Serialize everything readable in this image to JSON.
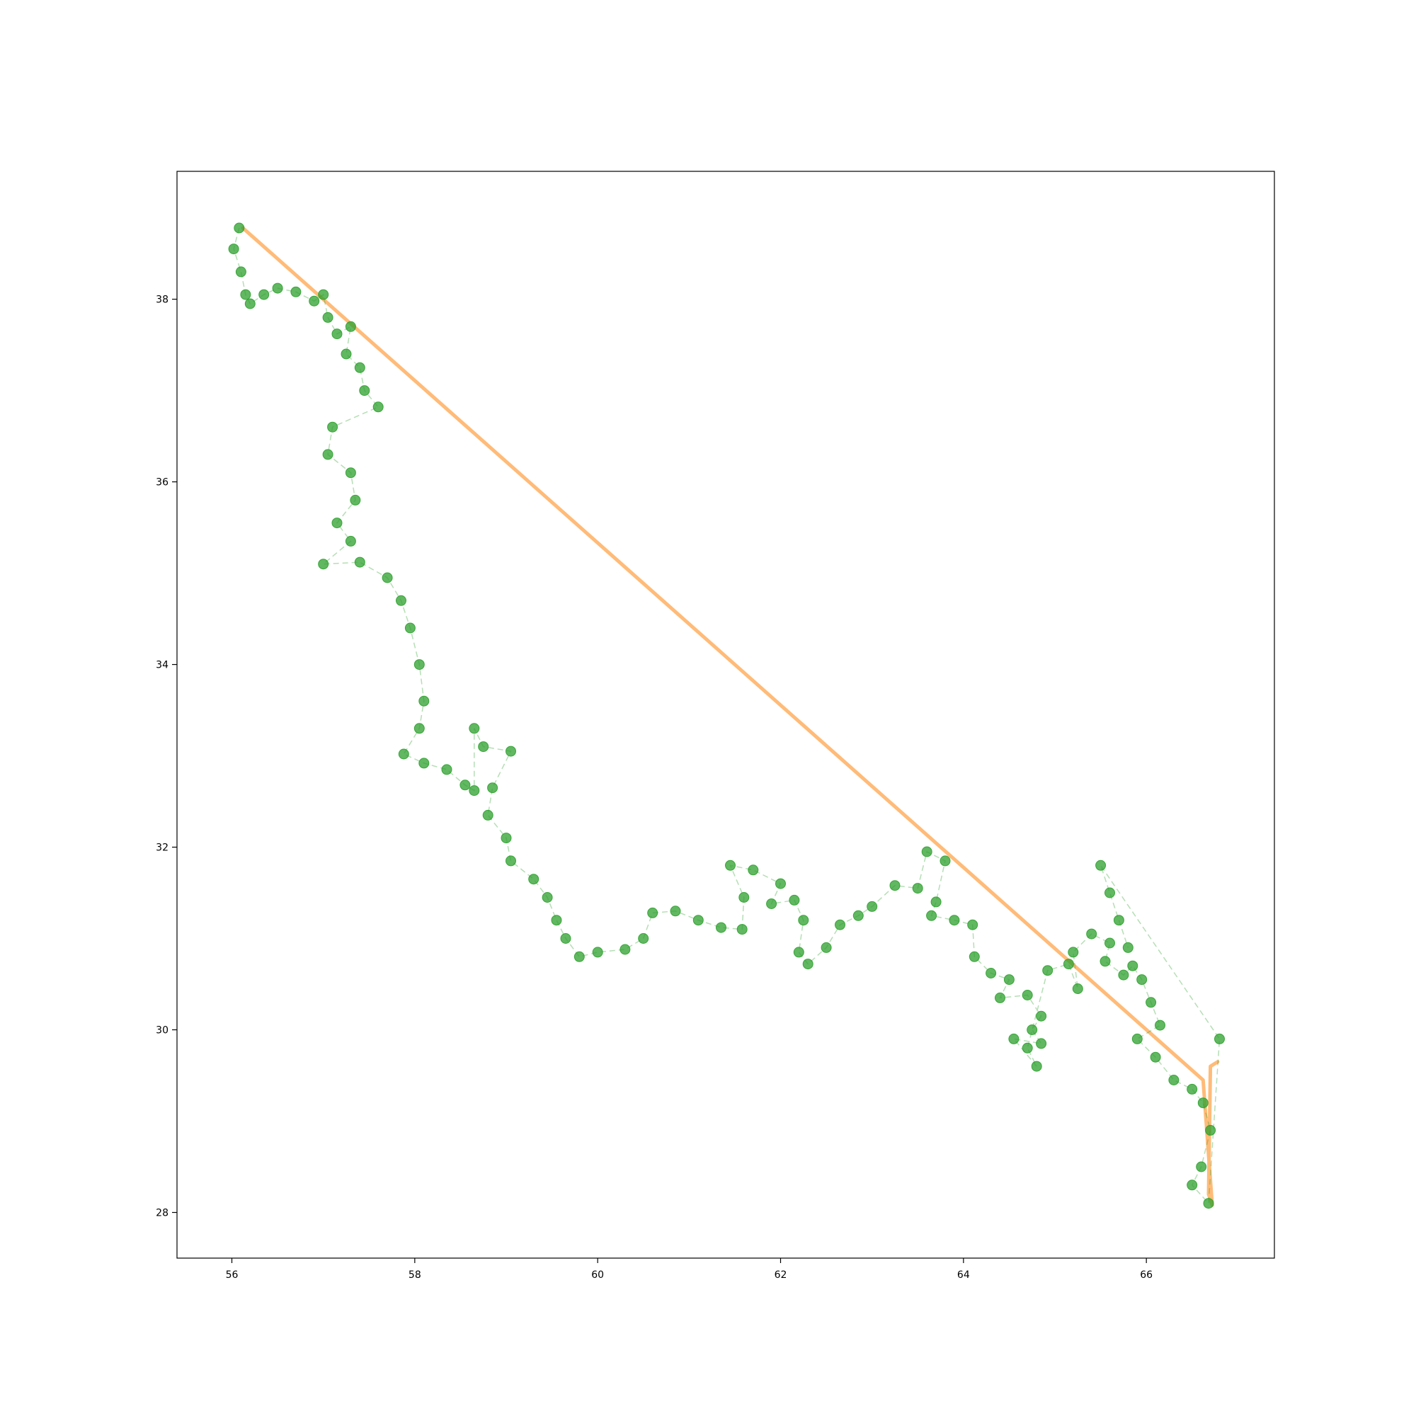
{
  "chart_data": {
    "type": "scatter",
    "title": "",
    "xlabel": "",
    "ylabel": "",
    "xlim": [
      55.4,
      67.4
    ],
    "ylim": [
      27.5,
      39.4
    ],
    "x_ticks": [
      56,
      58,
      60,
      62,
      64,
      66
    ],
    "x_tick_labels": [
      "56",
      "58",
      "60",
      "62",
      "64",
      "66"
    ],
    "y_ticks": [
      28,
      30,
      32,
      34,
      36,
      38
    ],
    "y_tick_labels": [
      "28",
      "30",
      "32",
      "34",
      "36",
      "38"
    ],
    "grid": false,
    "legend": "none",
    "series": [
      {
        "style": "line",
        "color": "#ffbb78",
        "points": [
          [
            56.12,
            38.78
          ],
          [
            66.62,
            29.45
          ],
          [
            66.72,
            28.08
          ],
          [
            66.68,
            28.2
          ],
          [
            66.7,
            29.6
          ],
          [
            66.78,
            29.65
          ]
        ]
      },
      {
        "style": "markers-dashed-line",
        "color": "#2ca02c",
        "points": [
          [
            56.08,
            38.78
          ],
          [
            56.02,
            38.55
          ],
          [
            56.1,
            38.3
          ],
          [
            56.15,
            38.05
          ],
          [
            56.2,
            37.95
          ],
          [
            56.35,
            38.05
          ],
          [
            56.5,
            38.12
          ],
          [
            56.7,
            38.08
          ],
          [
            56.9,
            37.98
          ],
          [
            57.0,
            38.05
          ],
          [
            57.05,
            37.8
          ],
          [
            57.15,
            37.62
          ],
          [
            57.3,
            37.7
          ],
          [
            57.25,
            37.4
          ],
          [
            57.4,
            37.25
          ],
          [
            57.45,
            37.0
          ],
          [
            57.6,
            36.82
          ],
          [
            57.1,
            36.6
          ],
          [
            57.05,
            36.3
          ],
          [
            57.3,
            36.1
          ],
          [
            57.35,
            35.8
          ],
          [
            57.15,
            35.55
          ],
          [
            57.3,
            35.35
          ],
          [
            57.0,
            35.1
          ],
          [
            57.4,
            35.12
          ],
          [
            57.7,
            34.95
          ],
          [
            57.85,
            34.7
          ],
          [
            57.95,
            34.4
          ],
          [
            58.05,
            34.0
          ],
          [
            58.1,
            33.6
          ],
          [
            58.05,
            33.3
          ],
          [
            57.88,
            33.02
          ],
          [
            58.1,
            32.92
          ],
          [
            58.35,
            32.85
          ],
          [
            58.55,
            32.68
          ],
          [
            58.65,
            32.62
          ],
          [
            58.65,
            33.3
          ],
          [
            58.75,
            33.1
          ],
          [
            59.05,
            33.05
          ],
          [
            58.85,
            32.65
          ],
          [
            58.8,
            32.35
          ],
          [
            59.0,
            32.1
          ],
          [
            59.05,
            31.85
          ],
          [
            59.3,
            31.65
          ],
          [
            59.45,
            31.45
          ],
          [
            59.55,
            31.2
          ],
          [
            59.65,
            31.0
          ],
          [
            59.8,
            30.8
          ],
          [
            60.0,
            30.85
          ],
          [
            60.3,
            30.88
          ],
          [
            60.5,
            31.0
          ],
          [
            60.6,
            31.28
          ],
          [
            60.85,
            31.3
          ],
          [
            61.1,
            31.2
          ],
          [
            61.35,
            31.12
          ],
          [
            61.58,
            31.1
          ],
          [
            61.6,
            31.45
          ],
          [
            61.45,
            31.8
          ],
          [
            61.7,
            31.75
          ],
          [
            62.0,
            31.6
          ],
          [
            61.9,
            31.38
          ],
          [
            62.15,
            31.42
          ],
          [
            62.25,
            31.2
          ],
          [
            62.2,
            30.85
          ],
          [
            62.3,
            30.72
          ],
          [
            62.5,
            30.9
          ],
          [
            62.65,
            31.15
          ],
          [
            62.85,
            31.25
          ],
          [
            63.0,
            31.35
          ],
          [
            63.25,
            31.58
          ],
          [
            63.5,
            31.55
          ],
          [
            63.6,
            31.95
          ],
          [
            63.8,
            31.85
          ],
          [
            63.7,
            31.4
          ],
          [
            63.65,
            31.25
          ],
          [
            63.9,
            31.2
          ],
          [
            64.1,
            31.15
          ],
          [
            64.12,
            30.8
          ],
          [
            64.3,
            30.62
          ],
          [
            64.5,
            30.55
          ],
          [
            64.4,
            30.35
          ],
          [
            64.7,
            30.38
          ],
          [
            64.85,
            30.15
          ],
          [
            64.75,
            30.0
          ],
          [
            64.85,
            29.85
          ],
          [
            64.55,
            29.9
          ],
          [
            64.8,
            29.6
          ],
          [
            64.7,
            29.8
          ],
          [
            64.92,
            30.65
          ],
          [
            65.15,
            30.72
          ],
          [
            65.25,
            30.45
          ],
          [
            65.2,
            30.85
          ],
          [
            65.4,
            31.05
          ],
          [
            65.6,
            30.95
          ],
          [
            65.55,
            30.75
          ],
          [
            65.75,
            30.6
          ],
          [
            65.85,
            30.7
          ],
          [
            65.95,
            30.55
          ],
          [
            66.05,
            30.3
          ],
          [
            66.15,
            30.05
          ],
          [
            65.9,
            29.9
          ],
          [
            66.1,
            29.7
          ],
          [
            66.3,
            29.45
          ],
          [
            66.5,
            29.35
          ],
          [
            66.62,
            29.2
          ],
          [
            66.7,
            28.9
          ],
          [
            66.6,
            28.5
          ],
          [
            66.5,
            28.3
          ],
          [
            66.68,
            28.1
          ],
          [
            66.8,
            29.9
          ],
          [
            65.5,
            31.8
          ],
          [
            65.6,
            31.5
          ],
          [
            65.7,
            31.2
          ],
          [
            65.8,
            30.9
          ]
        ]
      }
    ]
  }
}
